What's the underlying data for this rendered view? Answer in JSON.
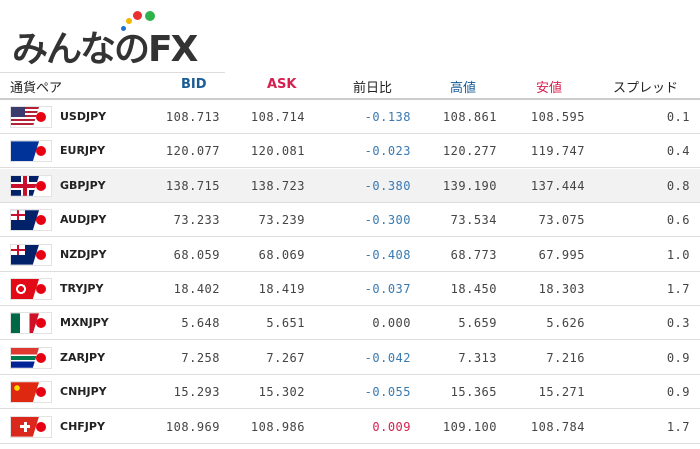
{
  "logo": {
    "text": "みんなのFX",
    "dot_colors": [
      "#1e6fd9",
      "#f5b400",
      "#e83030",
      "#2db34a"
    ]
  },
  "header": {
    "pair": "通貨ペア",
    "bid": "BID",
    "ask": "ASK",
    "change": "前日比",
    "high": "高値",
    "low": "安値",
    "spread": "スプレッド"
  },
  "colors": {
    "bid": "#1a5c96",
    "ask": "#d6204f",
    "high": "#1a5c96",
    "low": "#d6204f",
    "negative": "#3a7ab0",
    "positive": "#d6204f",
    "zero": "#444444"
  },
  "rows": [
    {
      "pair": "USDJPY",
      "flag": "us-flag",
      "bid": "108.713",
      "ask": "108.714",
      "change": "-0.138",
      "high": "108.861",
      "low": "108.595",
      "spread": "0.1"
    },
    {
      "pair": "EURJPY",
      "flag": "eu-flag",
      "bid": "120.077",
      "ask": "120.081",
      "change": "-0.023",
      "high": "120.277",
      "low": "119.747",
      "spread": "0.4"
    },
    {
      "pair": "GBPJPY",
      "flag": "uk-flag",
      "bid": "138.715",
      "ask": "138.723",
      "change": "-0.380",
      "high": "139.190",
      "low": "137.444",
      "spread": "0.8",
      "highlighted": true
    },
    {
      "pair": "AUDJPY",
      "flag": "au-flag",
      "bid": "73.233",
      "ask": "73.239",
      "change": "-0.300",
      "high": "73.534",
      "low": "73.075",
      "spread": "0.6"
    },
    {
      "pair": "NZDJPY",
      "flag": "nz-flag",
      "bid": "68.059",
      "ask": "68.069",
      "change": "-0.408",
      "high": "68.773",
      "low": "67.995",
      "spread": "1.0"
    },
    {
      "pair": "TRYJPY",
      "flag": "tr-flag",
      "bid": "18.402",
      "ask": "18.419",
      "change": "-0.037",
      "high": "18.450",
      "low": "18.303",
      "spread": "1.7"
    },
    {
      "pair": "MXNJPY",
      "flag": "mx-flag",
      "bid": "5.648",
      "ask": "5.651",
      "change": "0.000",
      "high": "5.659",
      "low": "5.626",
      "spread": "0.3"
    },
    {
      "pair": "ZARJPY",
      "flag": "za-flag",
      "bid": "7.258",
      "ask": "7.267",
      "change": "-0.042",
      "high": "7.313",
      "low": "7.216",
      "spread": "0.9"
    },
    {
      "pair": "CNHJPY",
      "flag": "cn-flag",
      "bid": "15.293",
      "ask": "15.302",
      "change": "-0.055",
      "high": "15.365",
      "low": "15.271",
      "spread": "0.9"
    },
    {
      "pair": "CHFJPY",
      "flag": "ch-flag",
      "bid": "108.969",
      "ask": "108.986",
      "change": "0.009",
      "high": "109.100",
      "low": "108.784",
      "spread": "1.7"
    }
  ]
}
